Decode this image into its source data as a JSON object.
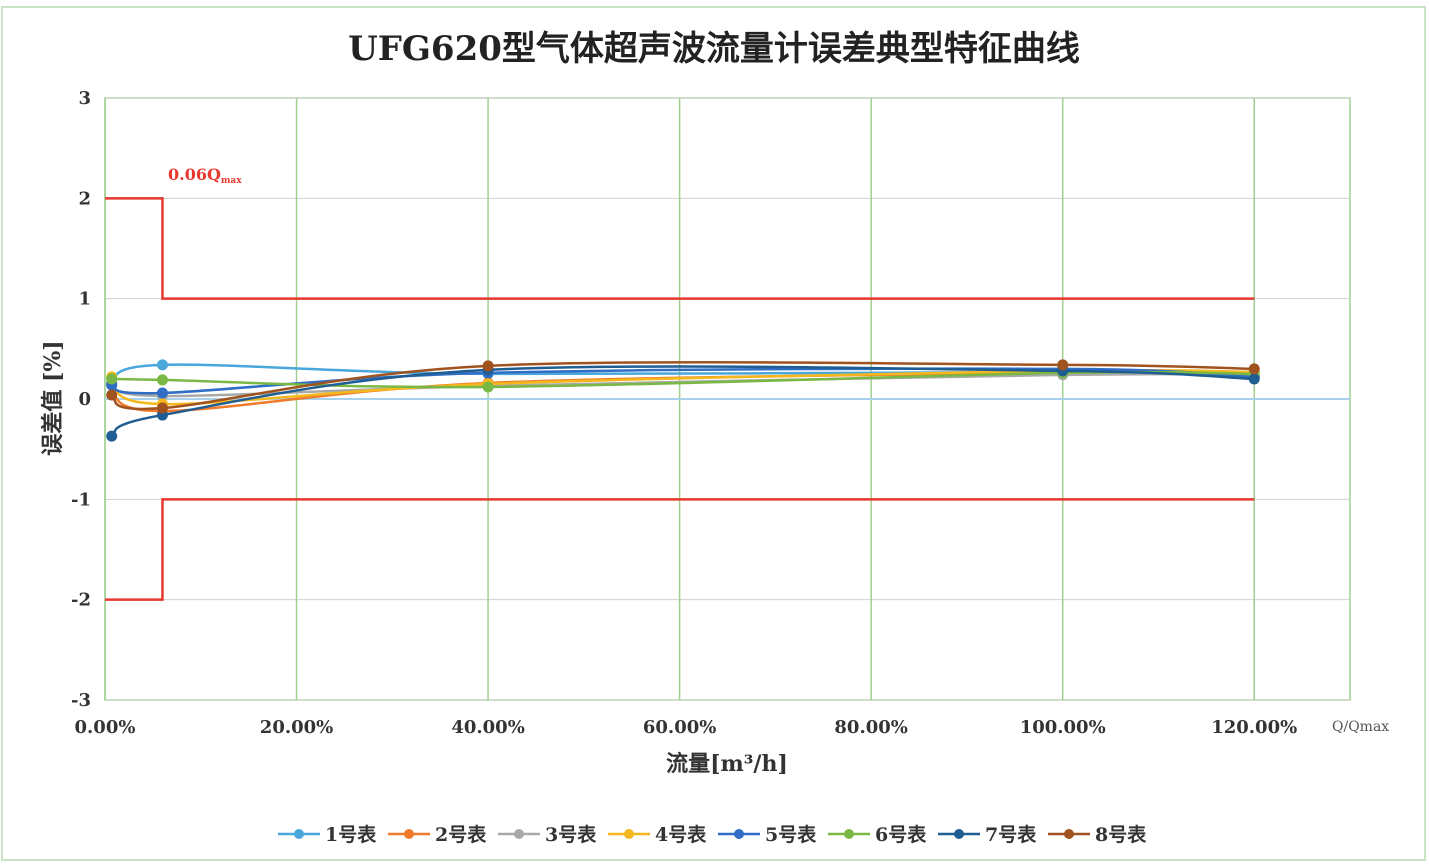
{
  "chart_data": {
    "type": "line",
    "title": "UFG620型气体超声波流量计误差典型特征曲线",
    "xlabel": "流量[m³/h]",
    "x_unit_label": "Q/Qmax",
    "ylabel": "误差值 [%]",
    "xlim": [
      0,
      130
    ],
    "ylim": [
      -3,
      3
    ],
    "x_ticks": [
      0,
      20,
      40,
      60,
      80,
      100,
      120
    ],
    "x_tick_labels": [
      "0.00%",
      "20.00%",
      "40.00%",
      "60.00%",
      "80.00%",
      "100.00%",
      "120.00%"
    ],
    "y_ticks": [
      3,
      2,
      1,
      0,
      -1,
      -2,
      -3
    ],
    "y_tick_labels": [
      "3",
      "2",
      "1",
      "0",
      "-1",
      "-2",
      "-3"
    ],
    "grid": true,
    "legend_position": "bottom",
    "x": [
      0.7,
      6,
      40,
      100,
      120
    ],
    "series": [
      {
        "name": "1号表",
        "color": "#4aa7dc",
        "values": [
          0.14,
          0.34,
          0.25,
          0.27,
          0.22
        ]
      },
      {
        "name": "2号表",
        "color": "#ef7b2a",
        "values": [
          0.16,
          -0.12,
          0.16,
          0.26,
          0.24
        ]
      },
      {
        "name": "3号表",
        "color": "#a9a9a9",
        "values": [
          0.16,
          0.03,
          0.13,
          0.24,
          0.24
        ]
      },
      {
        "name": "4号表",
        "color": "#f4b81c",
        "values": [
          0.22,
          -0.05,
          0.15,
          0.28,
          0.27
        ]
      },
      {
        "name": "5号表",
        "color": "#2f6ec4",
        "values": [
          0.14,
          0.06,
          0.26,
          0.3,
          0.22
        ]
      },
      {
        "name": "6号表",
        "color": "#7ab845",
        "values": [
          0.2,
          0.19,
          0.12,
          0.26,
          0.25
        ]
      },
      {
        "name": "7号表",
        "color": "#1f5d92",
        "values": [
          -0.37,
          -0.16,
          0.29,
          0.28,
          0.2
        ]
      },
      {
        "name": "8号表",
        "color": "#a0521f",
        "values": [
          0.04,
          -0.09,
          0.33,
          0.34,
          0.3
        ]
      }
    ],
    "limit_lines": {
      "color": "#e8382f",
      "transition_x": 6,
      "end_x": 120,
      "upper_low_flow": 2,
      "upper_high_flow": 1,
      "lower_low_flow": -2,
      "lower_high_flow": -1,
      "annotation": "0.06Q",
      "annotation_subscript": "max"
    },
    "zero_line_color": "#a8d1ee",
    "grid_color": "#9fd08f"
  }
}
